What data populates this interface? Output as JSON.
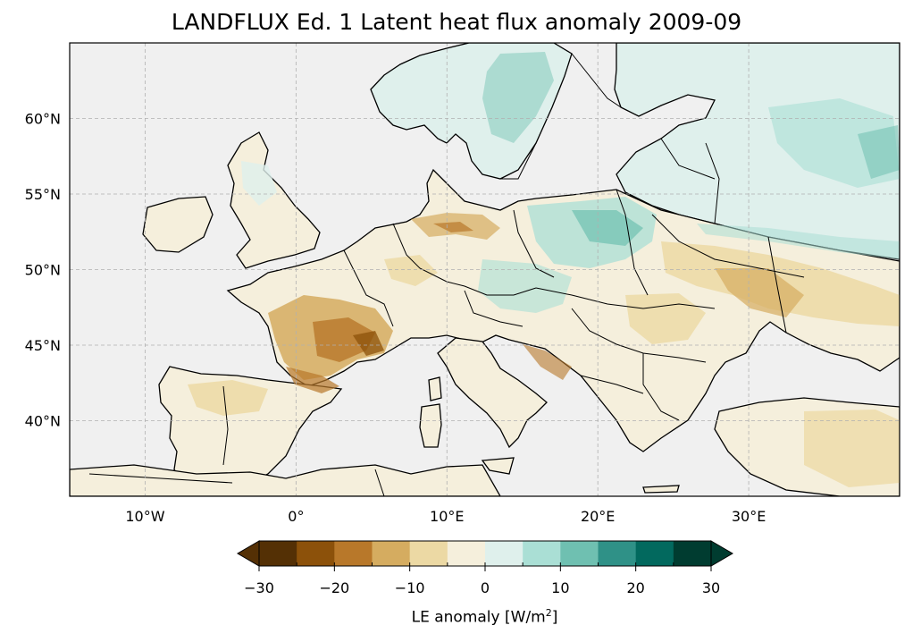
{
  "title": "LANDFLUX Ed. 1 Latent heat flux anomaly 2009-09",
  "map": {
    "lon_range": [
      -15,
      40
    ],
    "lat_range": [
      35,
      65
    ],
    "lon_ticks": [
      {
        "lon": -10,
        "label": "10°W"
      },
      {
        "lon": 0,
        "label": "0°"
      },
      {
        "lon": 10,
        "label": "10°E"
      },
      {
        "lon": 20,
        "label": "20°E"
      },
      {
        "lon": 30,
        "label": "30°E"
      }
    ],
    "lat_ticks": [
      {
        "lat": 40,
        "label": "40°N"
      },
      {
        "lat": 45,
        "label": "45°N"
      },
      {
        "lat": 50,
        "label": "50°N"
      },
      {
        "lat": 55,
        "label": "55°N"
      },
      {
        "lat": 60,
        "label": "60°N"
      }
    ],
    "ocean_color": "#f0f0f0",
    "gridlines": true
  },
  "colorbar": {
    "label_prefix": "LE anomaly [W/m",
    "label_sup": "2",
    "label_suffix": "]",
    "levels": [
      -30,
      -25,
      -20,
      -15,
      -10,
      -5,
      0,
      5,
      10,
      15,
      20,
      25,
      30
    ],
    "tick_values": [
      -30,
      -20,
      -10,
      0,
      10,
      20,
      30
    ],
    "tick_labels": [
      "−30",
      "−20",
      "−10",
      "0",
      "10",
      "20",
      "30"
    ],
    "under_color": "#543005",
    "over_color": "#003c30",
    "colors": [
      "#543005",
      "#8c510a",
      "#b8782a",
      "#d5ac60",
      "#ecd9a4",
      "#f5efdc",
      "#dff0ec",
      "#aadfd5",
      "#6fc0b1",
      "#2f9187",
      "#02695e",
      "#003c30"
    ]
  }
}
